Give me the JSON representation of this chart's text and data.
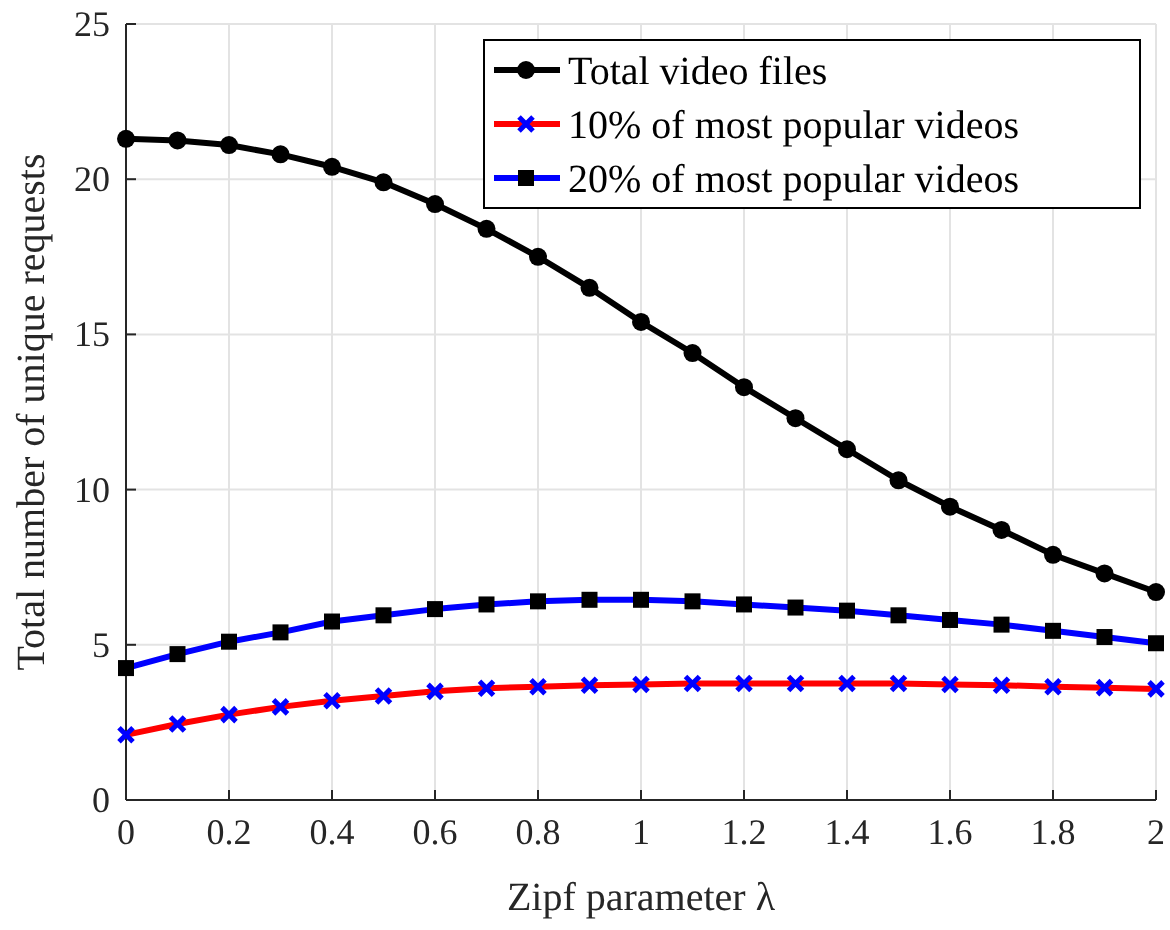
{
  "chart_data": {
    "type": "line",
    "xlabel": "Zipf parameter λ",
    "ylabel": "Total number of unique requests",
    "x": [
      0,
      0.1,
      0.2,
      0.3,
      0.4,
      0.5,
      0.6,
      0.7,
      0.8,
      0.9,
      1,
      1.1,
      1.2,
      1.3,
      1.4,
      1.5,
      1.6,
      1.7,
      1.8,
      1.9,
      2
    ],
    "series": [
      {
        "name": "Total video files",
        "color": "#000000",
        "marker": "circle",
        "values": [
          21.3,
          21.25,
          21.1,
          20.8,
          20.4,
          19.9,
          19.2,
          18.4,
          17.5,
          16.5,
          15.4,
          14.4,
          13.3,
          12.3,
          11.3,
          10.3,
          9.45,
          8.7,
          7.9,
          7.3,
          6.7
        ]
      },
      {
        "name": "10% of most popular videos",
        "color": "#ff0000",
        "marker": "cross",
        "values": [
          2.1,
          2.45,
          2.75,
          3.0,
          3.2,
          3.35,
          3.5,
          3.6,
          3.65,
          3.7,
          3.72,
          3.75,
          3.75,
          3.75,
          3.75,
          3.75,
          3.72,
          3.7,
          3.65,
          3.62,
          3.58
        ]
      },
      {
        "name": "20% of most popular videos",
        "color": "#0000ff",
        "marker": "square",
        "values": [
          4.25,
          4.7,
          5.1,
          5.4,
          5.75,
          5.95,
          6.15,
          6.3,
          6.4,
          6.45,
          6.45,
          6.4,
          6.3,
          6.2,
          6.1,
          5.95,
          5.8,
          5.65,
          5.45,
          5.25,
          5.05
        ]
      }
    ],
    "xlim": [
      0,
      2
    ],
    "xticks": [
      0,
      0.2,
      0.4,
      0.6,
      0.8,
      1,
      1.2,
      1.4,
      1.6,
      1.8,
      2
    ],
    "ylim": [
      0,
      25
    ],
    "yticks": [
      0,
      5,
      10,
      15,
      20,
      25
    ],
    "grid": true,
    "legend": "top right",
    "line_style": "solid"
  }
}
